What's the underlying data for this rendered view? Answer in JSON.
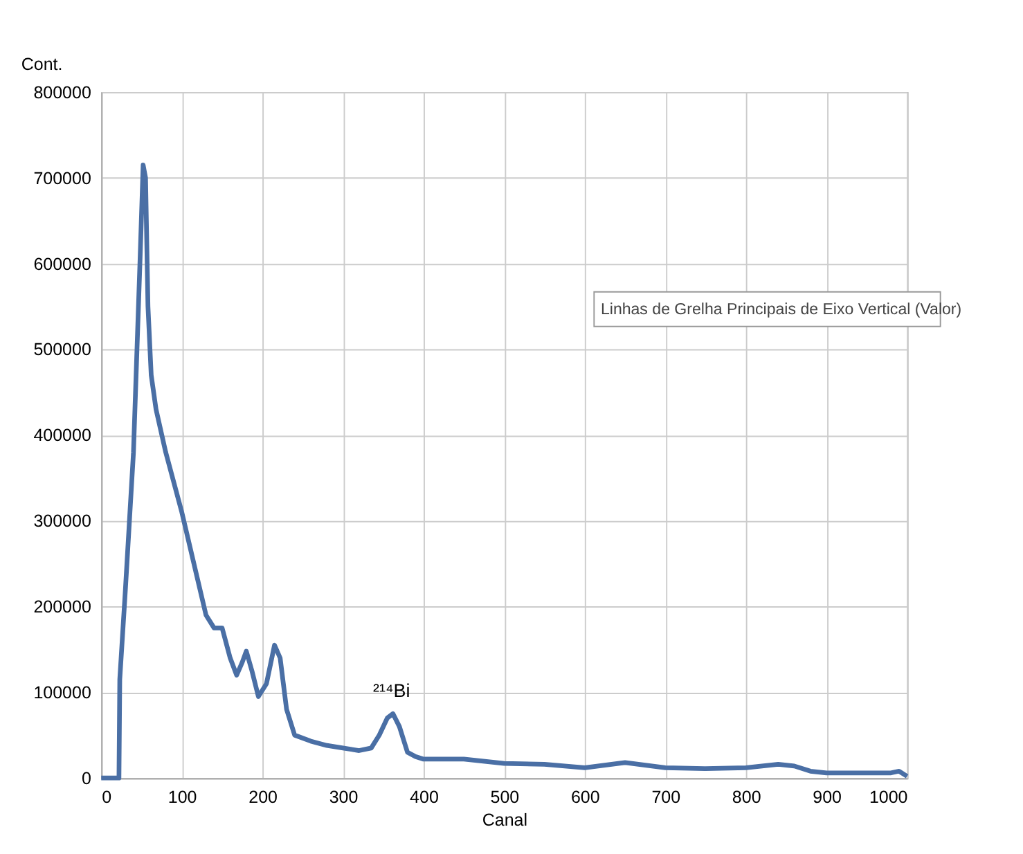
{
  "chart_data": {
    "type": "line",
    "xlabel": "Canal",
    "ylabel": "Cont.",
    "x": [
      0,
      10,
      20,
      22,
      23,
      30,
      40,
      48,
      52,
      55,
      58,
      62,
      68,
      80,
      100,
      120,
      130,
      140,
      150,
      160,
      168,
      175,
      180,
      187,
      195,
      205,
      215,
      222,
      230,
      240,
      260,
      280,
      300,
      320,
      335,
      345,
      355,
      362,
      370,
      380,
      390,
      400,
      450,
      500,
      550,
      600,
      650,
      700,
      750,
      800,
      840,
      860,
      880,
      900,
      950,
      980,
      990,
      1000
    ],
    "series": [
      {
        "color": "#4a6fa5",
        "values": [
          0,
          0,
          0,
          0,
          115000,
          220000,
          380000,
          600000,
          715000,
          700000,
          550000,
          470000,
          430000,
          380000,
          310000,
          230000,
          190000,
          175000,
          175000,
          140000,
          120000,
          135000,
          148000,
          125000,
          95000,
          110000,
          155000,
          140000,
          80000,
          50000,
          43000,
          38000,
          35000,
          32000,
          35000,
          50000,
          70000,
          75000,
          60000,
          30000,
          25000,
          22000,
          22000,
          17000,
          16000,
          12000,
          18000,
          12000,
          11000,
          12000,
          16000,
          14000,
          8000,
          6000,
          6000,
          6000,
          8000,
          2000
        ]
      }
    ],
    "xlim": [
      0,
      1000
    ],
    "xticks": [
      0,
      100,
      200,
      300,
      400,
      500,
      600,
      700,
      800,
      900,
      1000
    ],
    "ylim": [
      0,
      800000
    ],
    "yticks": [
      0,
      100000,
      200000,
      300000,
      400000,
      500000,
      600000,
      700000,
      800000
    ],
    "grid": true,
    "annotations": [
      "²¹⁴Bi",
      "Linhas de Grelha Principais de Eixo Vertical (Valor)"
    ]
  }
}
